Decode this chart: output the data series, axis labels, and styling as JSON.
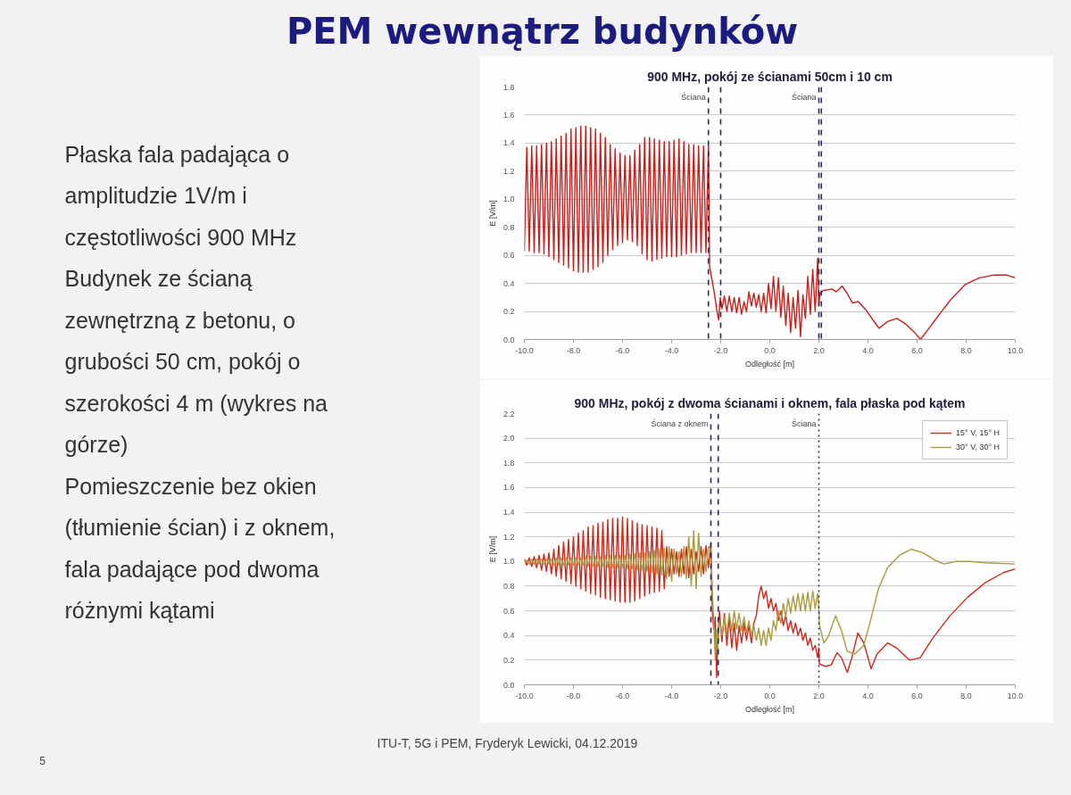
{
  "chart_data": [
    {
      "type": "other",
      "title": "PEM wewnątrz budynków",
      "annotations": [
        "Płaska fala padająca o\namplitudzie 1V/m i\nczęstotliwości 900 MHz",
        "Budynek ze ścianą\nzewnętrzną z betonu, o\ngrubości 50 cm, pokój o\nszerokości 4 m (wykres na\ngórze)",
        "Pomieszczenie bez okien\n(tłumienie ścian) i z oknem,\nfala padające pod dwoma\nróżnymi kątami",
        "ITU-T, 5G i PEM, Fryderyk Lewicki, 04.12.2019",
        "5"
      ]
    },
    {
      "type": "line",
      "title": "900 MHz, pokój ze ścianami 50cm i 10 cm",
      "xlabel": "Odległość [m]",
      "ylabel": "E [V/m]",
      "xlim": [
        -10,
        10
      ],
      "ylim": [
        0,
        1.8
      ],
      "xticks": [
        {
          "value": -10,
          "label": "-10.0"
        },
        {
          "value": -8,
          "label": "-8.0"
        },
        {
          "value": -6,
          "label": "-6.0"
        },
        {
          "value": -4,
          "label": "-4.0"
        },
        {
          "value": -2,
          "label": "-2.0"
        },
        {
          "value": 0,
          "label": "0.0"
        },
        {
          "value": 2,
          "label": "2.0"
        },
        {
          "value": 4,
          "label": "4.0"
        },
        {
          "value": 6,
          "label": "6.0"
        },
        {
          "value": 8,
          "label": "8.0"
        },
        {
          "value": 10,
          "label": "10.0"
        }
      ],
      "yticks": [
        {
          "value": 0,
          "label": "0.0"
        },
        {
          "value": 0.2,
          "label": "0.2"
        },
        {
          "value": 0.4,
          "label": "0.4"
        },
        {
          "value": 0.6,
          "label": "0.6"
        },
        {
          "value": 0.8,
          "label": "0.8"
        },
        {
          "value": 1.0,
          "label": "1.0"
        },
        {
          "value": 1.2,
          "label": "1.2"
        },
        {
          "value": 1.4,
          "label": "1.4"
        },
        {
          "value": 1.6,
          "label": "1.6"
        },
        {
          "value": 1.8,
          "label": "1.8"
        }
      ],
      "grid": "y",
      "ref_lines": [
        {
          "axis": "x",
          "value": -2.5,
          "label": "Ściana",
          "color": "#2b2b5b",
          "line_style": "dashed"
        },
        {
          "axis": "x",
          "value": -2.0,
          "color": "#2b2b5b",
          "line_style": "dashed"
        },
        {
          "axis": "x",
          "value": 2.0,
          "label": "Ściana",
          "color": "#2b2b5b",
          "line_style": "dashed"
        },
        {
          "axis": "x",
          "value": 2.1,
          "color": "#2b2b5b",
          "line_style": "dashed"
        }
      ],
      "series": [
        {
          "color": "#c8201c",
          "x": [
            -10.0,
            -9.9,
            -9.8,
            -9.7,
            -9.6,
            -9.5,
            -9.4,
            -9.3,
            -9.2,
            -9.1,
            -9.0,
            -8.9,
            -8.8,
            -8.7,
            -8.6,
            -8.5,
            -8.4,
            -8.3,
            -8.2,
            -8.1,
            -8.0,
            -7.9,
            -7.8,
            -7.7,
            -7.6,
            -7.5,
            -7.4,
            -7.3,
            -7.2,
            -7.1,
            -7.0,
            -6.9,
            -6.8,
            -6.7,
            -6.6,
            -6.5,
            -6.4,
            -6.3,
            -6.2,
            -6.1,
            -6.0,
            -5.9,
            -5.8,
            -5.7,
            -5.6,
            -5.5,
            -5.4,
            -5.3,
            -5.2,
            -5.1,
            -5.0,
            -4.9,
            -4.8,
            -4.7,
            -4.6,
            -4.5,
            -4.4,
            -4.3,
            -4.2,
            -4.1,
            -4.0,
            -3.9,
            -3.8,
            -3.7,
            -3.6,
            -3.5,
            -3.4,
            -3.3,
            -3.2,
            -3.1,
            -3.0,
            -2.9,
            -2.8,
            -2.7,
            -2.6,
            -2.5,
            -2.45,
            -2.35,
            -2.25,
            -2.15,
            -2.08,
            -2.02,
            -1.95,
            -1.85,
            -1.75,
            -1.65,
            -1.55,
            -1.45,
            -1.35,
            -1.25,
            -1.15,
            -1.05,
            -0.95,
            -0.85,
            -0.75,
            -0.65,
            -0.55,
            -0.45,
            -0.35,
            -0.25,
            -0.15,
            -0.05,
            0.05,
            0.15,
            0.25,
            0.35,
            0.45,
            0.55,
            0.65,
            0.75,
            0.85,
            0.95,
            1.05,
            1.15,
            1.25,
            1.35,
            1.45,
            1.55,
            1.65,
            1.75,
            1.85,
            1.95,
            2.0,
            2.05,
            2.2,
            2.53,
            2.71,
            2.95,
            3.15,
            3.37,
            3.61,
            3.97,
            4.2,
            4.45,
            4.82,
            5.18,
            5.54,
            5.9,
            6.14,
            6.4,
            6.74,
            7.0,
            7.35,
            7.95,
            8.3,
            8.55,
            9.15,
            9.64,
            10.0
          ],
          "values": [
            0.63,
            1.37,
            0.63,
            1.38,
            0.62,
            1.38,
            0.62,
            1.39,
            0.61,
            1.4,
            0.59,
            1.41,
            0.57,
            1.43,
            0.55,
            1.45,
            0.53,
            1.47,
            0.51,
            1.5,
            0.49,
            1.51,
            0.48,
            1.52,
            0.48,
            1.52,
            0.48,
            1.51,
            0.5,
            1.5,
            0.52,
            1.47,
            0.55,
            1.44,
            0.6,
            1.39,
            0.64,
            1.36,
            0.67,
            1.33,
            0.69,
            1.31,
            0.71,
            1.31,
            0.7,
            1.35,
            0.67,
            1.39,
            0.61,
            1.44,
            0.57,
            1.44,
            0.56,
            1.43,
            0.57,
            1.42,
            0.58,
            1.41,
            0.59,
            1.41,
            0.59,
            1.42,
            0.59,
            1.43,
            0.6,
            1.41,
            0.61,
            1.39,
            0.62,
            1.39,
            0.62,
            1.38,
            0.62,
            1.38,
            0.62,
            1.38,
            0.52,
            0.42,
            0.32,
            0.2,
            0.14,
            0.3,
            0.22,
            0.31,
            0.2,
            0.31,
            0.2,
            0.3,
            0.19,
            0.3,
            0.18,
            0.27,
            0.2,
            0.34,
            0.24,
            0.33,
            0.23,
            0.32,
            0.2,
            0.33,
            0.19,
            0.4,
            0.22,
            0.45,
            0.2,
            0.44,
            0.16,
            0.38,
            0.1,
            0.33,
            0.05,
            0.3,
            0.08,
            0.35,
            0.02,
            0.32,
            0.15,
            0.45,
            0.18,
            0.5,
            0.2,
            0.58,
            0.25,
            0.33,
            0.35,
            0.36,
            0.34,
            0.38,
            0.33,
            0.26,
            0.27,
            0.2,
            0.14,
            0.08,
            0.13,
            0.15,
            0.11,
            0.05,
            0.0,
            0.06,
            0.14,
            0.2,
            0.28,
            0.39,
            0.42,
            0.44,
            0.46,
            0.46,
            0.44
          ]
        }
      ]
    },
    {
      "type": "line",
      "title": "900 MHz, pokój z dwoma ścianami i oknem, fala płaska pod kątem",
      "xlabel": "Odległość [m]",
      "ylabel": "E [V/m]",
      "xlim": [
        -10,
        10
      ],
      "ylim": [
        0,
        2.2
      ],
      "xticks": [
        {
          "value": -10,
          "label": "-10.0"
        },
        {
          "value": -8,
          "label": "-8.0"
        },
        {
          "value": -6,
          "label": "-6.0"
        },
        {
          "value": -4,
          "label": "-4.0"
        },
        {
          "value": -2,
          "label": "-2.0"
        },
        {
          "value": 0,
          "label": "0.0"
        },
        {
          "value": 2,
          "label": "2.0"
        },
        {
          "value": 4,
          "label": "4.0"
        },
        {
          "value": 6,
          "label": "6.0"
        },
        {
          "value": 8,
          "label": "8.0"
        },
        {
          "value": 10,
          "label": "10.0"
        }
      ],
      "yticks": [
        {
          "value": 0,
          "label": "0.0"
        },
        {
          "value": 0.2,
          "label": "0.2"
        },
        {
          "value": 0.4,
          "label": "0.4"
        },
        {
          "value": 0.6,
          "label": "0.6"
        },
        {
          "value": 0.8,
          "label": "0.8"
        },
        {
          "value": 1.0,
          "label": "1.0"
        },
        {
          "value": 1.2,
          "label": "1.2"
        },
        {
          "value": 1.4,
          "label": "1.4"
        },
        {
          "value": 1.6,
          "label": "1.6"
        },
        {
          "value": 1.8,
          "label": "1.8"
        },
        {
          "value": 2.0,
          "label": "2.0"
        },
        {
          "value": 2.2,
          "label": "2.2"
        }
      ],
      "grid": "y",
      "legend": "top right",
      "ref_lines": [
        {
          "axis": "x",
          "value": -2.4,
          "label": "Ściana z oknem",
          "color": "#2b2b5b",
          "line_style": "dashed"
        },
        {
          "axis": "x",
          "value": -2.1,
          "color": "#2b2b5b",
          "line_style": "dashed"
        },
        {
          "axis": "x",
          "value": 2.0,
          "label": "Ściana",
          "color": "#2b2b5b",
          "line_style": "dotted"
        }
      ],
      "series": [
        {
          "name": "15° V, 15° H",
          "color": "#cc2a1c",
          "x": [
            -10.0,
            -9.9,
            -9.8,
            -9.7,
            -9.6,
            -9.5,
            -9.4,
            -9.3,
            -9.2,
            -9.1,
            -9.0,
            -8.9,
            -8.8,
            -8.7,
            -8.6,
            -8.5,
            -8.4,
            -8.3,
            -8.2,
            -8.1,
            -8.0,
            -7.9,
            -7.8,
            -7.7,
            -7.6,
            -7.5,
            -7.4,
            -7.3,
            -7.2,
            -7.1,
            -7.0,
            -6.9,
            -6.8,
            -6.7,
            -6.6,
            -6.5,
            -6.4,
            -6.3,
            -6.2,
            -6.1,
            -6.0,
            -5.9,
            -5.8,
            -5.7,
            -5.6,
            -5.5,
            -5.4,
            -5.3,
            -5.2,
            -5.1,
            -5.0,
            -4.9,
            -4.8,
            -4.7,
            -4.6,
            -4.5,
            -4.4,
            -4.3,
            -4.2,
            -4.1,
            -4.0,
            -3.9,
            -3.8,
            -3.7,
            -3.6,
            -3.5,
            -3.4,
            -3.3,
            -3.2,
            -3.1,
            -3.0,
            -2.9,
            -2.8,
            -2.7,
            -2.6,
            -2.5,
            -2.4,
            -2.34,
            -2.28,
            -2.22,
            -2.17,
            -2.12,
            -2.05,
            -1.95,
            -1.85,
            -1.75,
            -1.65,
            -1.55,
            -1.45,
            -1.35,
            -1.25,
            -1.15,
            -1.05,
            -0.95,
            -0.85,
            -0.75,
            -0.65,
            -0.55,
            -0.45,
            -0.35,
            -0.25,
            -0.15,
            -0.05,
            0.05,
            0.15,
            0.25,
            0.35,
            0.45,
            0.55,
            0.65,
            0.75,
            0.85,
            0.95,
            1.05,
            1.15,
            1.25,
            1.35,
            1.45,
            1.55,
            1.65,
            1.75,
            1.85,
            1.95,
            2.0,
            2.02,
            2.26,
            2.5,
            2.74,
            2.92,
            3.16,
            3.34,
            3.59,
            3.83,
            4.13,
            4.37,
            4.8,
            5.16,
            5.7,
            6.13,
            6.61,
            7.34,
            8.06,
            8.79,
            9.52,
            10.0
          ],
          "values": [
            1.02,
            0.97,
            1.03,
            0.96,
            1.04,
            0.95,
            1.05,
            0.93,
            1.06,
            0.92,
            1.07,
            0.9,
            1.1,
            0.88,
            1.13,
            0.86,
            1.16,
            0.84,
            1.18,
            0.82,
            1.2,
            0.8,
            1.23,
            0.78,
            1.25,
            0.76,
            1.28,
            0.74,
            1.29,
            0.73,
            1.31,
            0.71,
            1.32,
            0.7,
            1.34,
            0.69,
            1.35,
            0.68,
            1.35,
            0.67,
            1.36,
            0.67,
            1.35,
            0.67,
            1.33,
            0.68,
            1.31,
            0.7,
            1.3,
            0.72,
            1.29,
            0.74,
            1.28,
            0.75,
            1.27,
            0.76,
            1.25,
            0.78,
            1.12,
            0.88,
            1.1,
            0.9,
            1.08,
            0.88,
            1.1,
            0.9,
            1.12,
            0.87,
            1.1,
            0.9,
            1.08,
            0.92,
            1.12,
            0.9,
            1.13,
            0.95,
            1.15,
            0.58,
            0.45,
            0.55,
            0.06,
            0.35,
            0.6,
            0.35,
            0.58,
            0.32,
            0.55,
            0.3,
            0.5,
            0.28,
            0.48,
            0.34,
            0.5,
            0.36,
            0.48,
            0.34,
            0.5,
            0.56,
            0.72,
            0.8,
            0.7,
            0.76,
            0.62,
            0.7,
            0.6,
            0.66,
            0.52,
            0.6,
            0.48,
            0.56,
            0.44,
            0.52,
            0.42,
            0.5,
            0.4,
            0.46,
            0.36,
            0.42,
            0.32,
            0.38,
            0.28,
            0.32,
            0.22,
            0.3,
            0.17,
            0.15,
            0.16,
            0.26,
            0.22,
            0.1,
            0.22,
            0.42,
            0.34,
            0.13,
            0.25,
            0.34,
            0.3,
            0.2,
            0.22,
            0.37,
            0.56,
            0.71,
            0.83,
            0.91,
            0.94
          ]
        },
        {
          "name": "30° V, 30° H",
          "color": "#a89c3c",
          "x": [
            -10.0,
            -9.9,
            -9.8,
            -9.7,
            -9.6,
            -9.5,
            -9.4,
            -9.3,
            -9.2,
            -9.1,
            -9.0,
            -8.9,
            -8.8,
            -8.7,
            -8.6,
            -8.5,
            -8.4,
            -8.3,
            -8.2,
            -8.1,
            -8.0,
            -7.9,
            -7.8,
            -7.7,
            -7.6,
            -7.5,
            -7.4,
            -7.3,
            -7.2,
            -7.1,
            -7.0,
            -6.9,
            -6.8,
            -6.7,
            -6.6,
            -6.5,
            -6.4,
            -6.3,
            -6.2,
            -6.1,
            -6.0,
            -5.9,
            -5.8,
            -5.7,
            -5.6,
            -5.5,
            -5.4,
            -5.3,
            -5.2,
            -5.1,
            -5.0,
            -4.9,
            -4.8,
            -4.7,
            -4.6,
            -4.5,
            -4.4,
            -4.3,
            -4.2,
            -4.1,
            -4.0,
            -3.9,
            -3.8,
            -3.7,
            -3.6,
            -3.5,
            -3.4,
            -3.3,
            -3.2,
            -3.1,
            -3.0,
            -2.9,
            -2.8,
            -2.7,
            -2.6,
            -2.5,
            -2.4,
            -2.34,
            -2.28,
            -2.22,
            -2.17,
            -2.12,
            -2.05,
            -1.95,
            -1.85,
            -1.75,
            -1.65,
            -1.55,
            -1.45,
            -1.35,
            -1.25,
            -1.15,
            -1.05,
            -0.95,
            -0.85,
            -0.75,
            -0.65,
            -0.55,
            -0.45,
            -0.35,
            -0.25,
            -0.15,
            -0.05,
            0.05,
            0.15,
            0.25,
            0.35,
            0.45,
            0.55,
            0.65,
            0.75,
            0.85,
            0.95,
            1.05,
            1.15,
            1.25,
            1.35,
            1.45,
            1.55,
            1.65,
            1.75,
            1.85,
            1.95,
            2.0,
            2.02,
            2.2,
            2.38,
            2.68,
            2.92,
            3.16,
            3.47,
            3.83,
            4.13,
            4.43,
            4.8,
            5.28,
            5.77,
            6.25,
            6.73,
            7.1,
            7.58,
            8.18,
            8.79,
            10.0
          ],
          "values": [
            0.99,
            1.01,
            0.98,
            1.02,
            0.98,
            1.02,
            0.98,
            1.02,
            0.98,
            1.02,
            0.98,
            1.02,
            0.97,
            1.03,
            0.97,
            1.03,
            0.97,
            1.03,
            0.97,
            1.03,
            0.97,
            1.03,
            0.97,
            1.03,
            0.97,
            1.04,
            0.96,
            1.04,
            0.96,
            1.04,
            0.96,
            1.04,
            0.96,
            1.05,
            0.95,
            1.05,
            0.95,
            1.05,
            0.95,
            1.05,
            0.95,
            1.05,
            0.94,
            1.06,
            0.94,
            1.06,
            0.93,
            1.07,
            0.93,
            1.07,
            0.92,
            1.08,
            0.91,
            1.09,
            0.9,
            1.1,
            0.89,
            1.11,
            0.86,
            1.12,
            0.84,
            1.1,
            0.9,
            1.08,
            0.88,
            1.12,
            0.86,
            1.2,
            0.8,
            1.25,
            0.78,
            1.23,
            0.88,
            1.1,
            0.92,
            1.12,
            1.1,
            0.75,
            0.5,
            0.2,
            0.45,
            0.3,
            0.52,
            0.4,
            0.55,
            0.42,
            0.58,
            0.44,
            0.6,
            0.45,
            0.58,
            0.44,
            0.55,
            0.42,
            0.52,
            0.4,
            0.48,
            0.36,
            0.46,
            0.32,
            0.44,
            0.32,
            0.46,
            0.36,
            0.52,
            0.44,
            0.6,
            0.5,
            0.66,
            0.55,
            0.7,
            0.58,
            0.72,
            0.6,
            0.74,
            0.6,
            0.74,
            0.6,
            0.75,
            0.6,
            0.76,
            0.62,
            0.74,
            0.62,
            0.49,
            0.34,
            0.39,
            0.56,
            0.44,
            0.27,
            0.25,
            0.32,
            0.54,
            0.78,
            0.95,
            1.05,
            1.1,
            1.07,
            1.01,
            0.98,
            1.0,
            1.0,
            0.99,
            0.98
          ]
        }
      ]
    }
  ]
}
